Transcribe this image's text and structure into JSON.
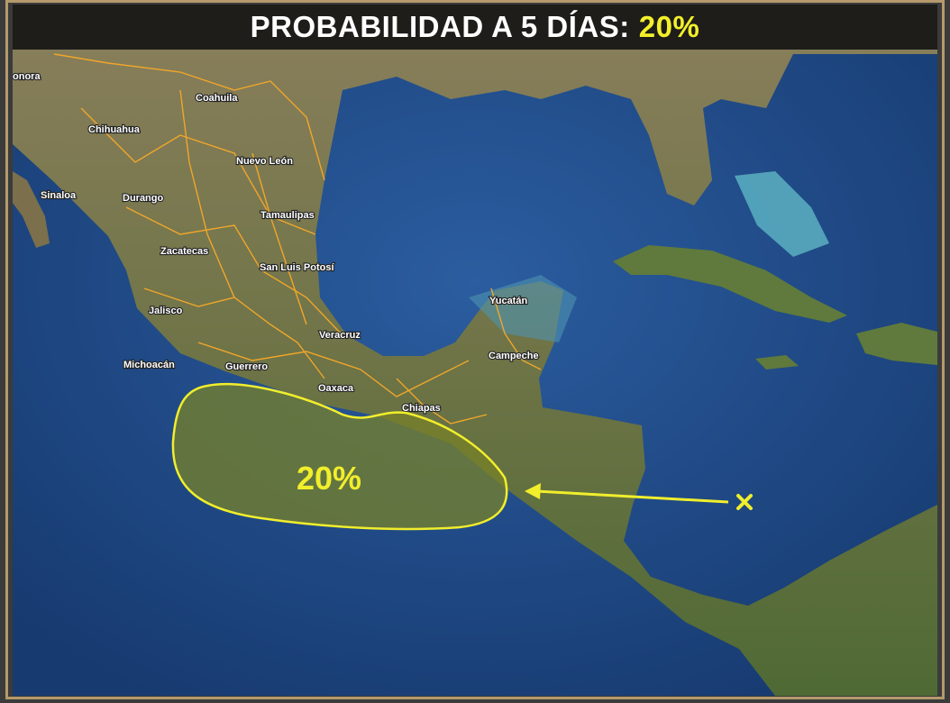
{
  "header": {
    "title": "PROBABILIDAD A 5 DÍAS:",
    "probability": "20%"
  },
  "zone": {
    "label": "20%",
    "color": "#f1ee2c"
  },
  "states": [
    "onora",
    "Coahuila",
    "Chihuahua",
    "Nuevo León",
    "Sinaloa",
    "Durango",
    "Tamaulipas",
    "Zacatecas",
    "San Luis Potosí",
    "Jalisco",
    "Yucatán",
    "Veracruz",
    "Campeche",
    "Michoacán",
    "Guerrero",
    "Oaxaca",
    "Chiapas"
  ],
  "colors": {
    "ocean": "#1f4a86",
    "land": "#6d7a45",
    "borders": "#f0a62a",
    "frame": "#b59a6c"
  },
  "icons": {
    "marker": "x-mark-icon",
    "arrow": "arrow-left-icon"
  }
}
